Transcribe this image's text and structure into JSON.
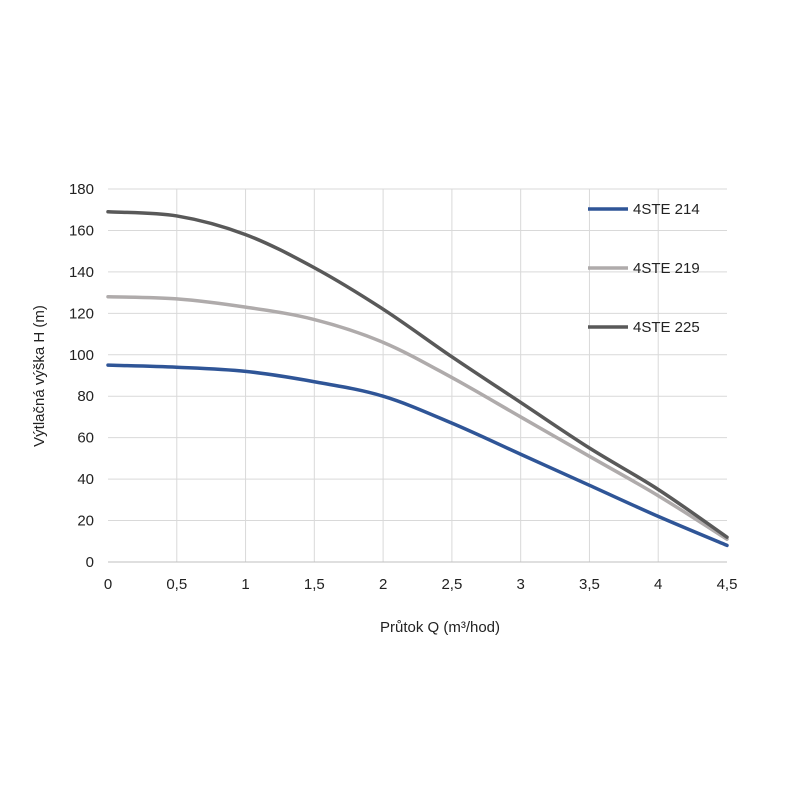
{
  "chart_data": {
    "type": "line",
    "title": "",
    "xlabel": "Průtok Q (m³/hod)",
    "ylabel": "Výtlačná výška H (m)",
    "xlim": [
      0,
      4.5
    ],
    "ylim": [
      0,
      180
    ],
    "x_ticks": [
      0,
      0.5,
      1,
      1.5,
      2,
      2.5,
      3,
      3.5,
      4,
      4.5
    ],
    "x_tick_labels": [
      "0",
      "0,5",
      "1",
      "1,5",
      "2",
      "2,5",
      "3",
      "3,5",
      "4",
      "4,5"
    ],
    "y_ticks": [
      0,
      20,
      40,
      60,
      80,
      100,
      120,
      140,
      160,
      180
    ],
    "y_tick_labels": [
      "0",
      "20",
      "40",
      "60",
      "80",
      "100",
      "120",
      "140",
      "160",
      "180"
    ],
    "grid": true,
    "legend_position": "top-right",
    "series": [
      {
        "name": "4STE 214",
        "color": "#2f5597",
        "x": [
          0,
          0.5,
          1,
          1.5,
          2,
          2.5,
          3,
          3.5,
          4,
          4.5
        ],
        "y": [
          95,
          94,
          92,
          87,
          80,
          67,
          52,
          37,
          22,
          8
        ]
      },
      {
        "name": "4STE 219",
        "color": "#afabab",
        "x": [
          0,
          0.5,
          1,
          1.5,
          2,
          2.5,
          3,
          3.5,
          4,
          4.5
        ],
        "y": [
          128,
          127,
          123,
          117,
          106,
          89,
          70,
          51,
          32,
          11
        ]
      },
      {
        "name": "4STE 225",
        "color": "#595959",
        "x": [
          0,
          0.5,
          1,
          1.5,
          2,
          2.5,
          3,
          3.5,
          4,
          4.5
        ],
        "y": [
          169,
          167,
          158,
          142,
          122,
          99,
          77,
          55,
          35,
          12
        ]
      }
    ]
  }
}
